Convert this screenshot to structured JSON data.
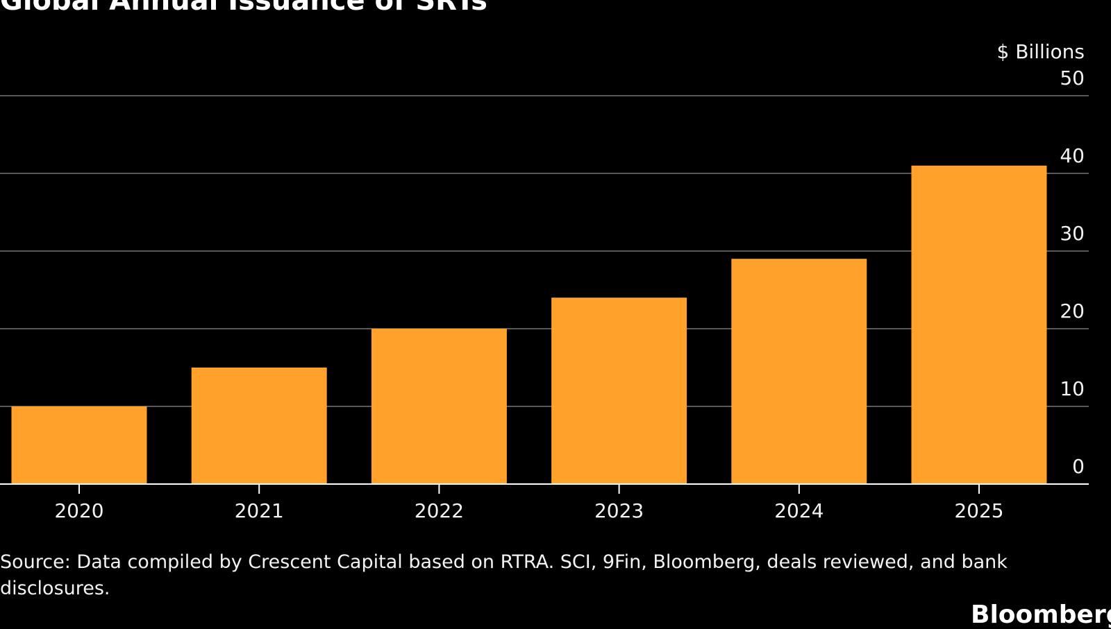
{
  "chart_data": {
    "type": "bar",
    "title": "Global Annual Issuance of SRTs",
    "ylabel": "$ Billions",
    "categories": [
      "2020",
      "2021",
      "2022",
      "2023",
      "2024",
      "2025"
    ],
    "values": [
      10,
      15,
      20,
      24,
      29,
      41
    ],
    "ylim": [
      0,
      50
    ],
    "yticks": [
      0,
      10,
      20,
      30,
      40,
      50
    ],
    "grid": true,
    "bar_color": "#FFA12B",
    "source": "Source: Data compiled by Crescent Capital based on RTRA. SCI, 9Fin, Bloomberg, deals reviewed, and bank disclosures."
  },
  "logo": "Bloomberg"
}
